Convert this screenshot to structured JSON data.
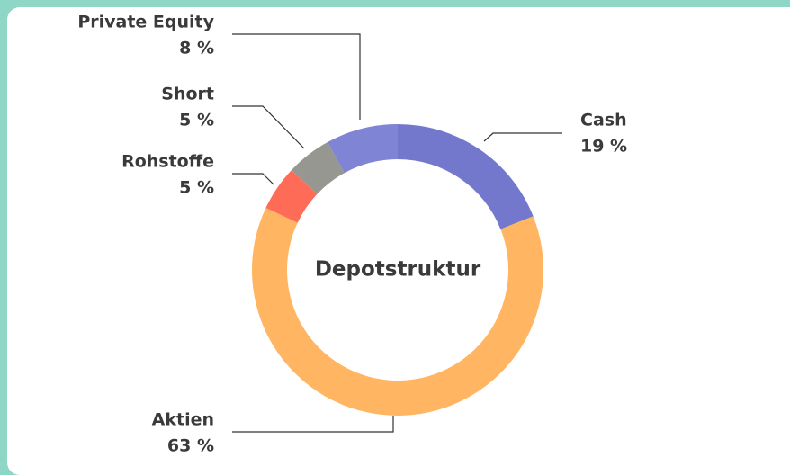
{
  "chart_data": {
    "type": "donut",
    "title": "Depotstruktur",
    "categories": [
      "Cash",
      "Aktien",
      "Rohstoffe",
      "Short",
      "Private Equity"
    ],
    "values": [
      19,
      63,
      5,
      5,
      8
    ],
    "value_labels": [
      "19 %",
      "63 %",
      "5 %",
      "5 %",
      "8 %"
    ],
    "colors": [
      "#7378cc",
      "#ffb562",
      "#fe6c58",
      "#979791",
      "#7f84d4"
    ]
  }
}
